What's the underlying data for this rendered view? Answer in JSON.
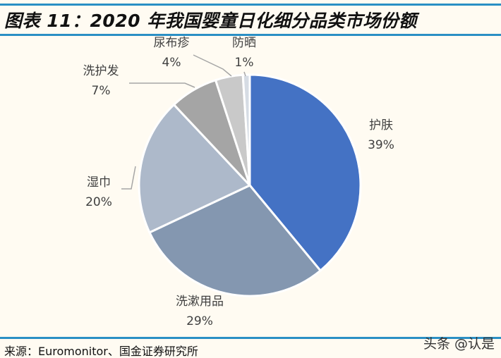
{
  "title": "图表 11：2020 年我国婴童日化细分品类市场份额",
  "source": "来源：Euromonitor、国金证券研究所",
  "watermark": "头条 @认是",
  "accent": "#2a8fc4",
  "chart_data": {
    "type": "pie",
    "title": "图表 11：2020 年我国婴童日化细分品类市场份额",
    "slices": [
      {
        "label": "护肤",
        "value": 39,
        "text": "39%",
        "color": "#4472c4"
      },
      {
        "label": "洗漱用品",
        "value": 29,
        "text": "29%",
        "color": "#8497b0"
      },
      {
        "label": "湿巾",
        "value": 20,
        "text": "20%",
        "color": "#adb9ca"
      },
      {
        "label": "洗护发",
        "value": 7,
        "text": "7%",
        "color": "#a5a5a5"
      },
      {
        "label": "尿布疹",
        "value": 4,
        "text": "4%",
        "color": "#c9c9c9"
      },
      {
        "label": "防晒",
        "value": 1,
        "text": "1%",
        "color": "#d6dce4"
      }
    ]
  }
}
